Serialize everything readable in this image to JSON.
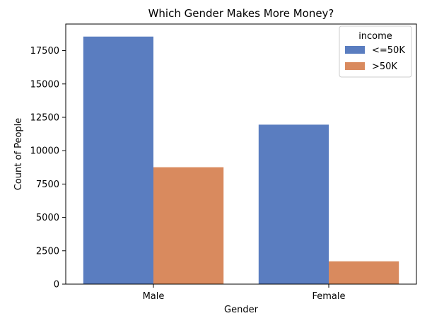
{
  "chart_data": {
    "type": "bar",
    "title": "Which Gender Makes More Money?",
    "xlabel": "Gender",
    "ylabel": "Count of People",
    "categories": [
      "Male",
      "Female"
    ],
    "series": [
      {
        "name": "<=50K",
        "values": [
          18550,
          11950
        ],
        "color": "#5a7dc0"
      },
      {
        "name": ">50K",
        "values": [
          8760,
          1710
        ],
        "color": "#d98a5e"
      }
    ],
    "ylim": [
      0,
      19490
    ],
    "yticks": [
      0,
      2500,
      5000,
      7500,
      10000,
      12500,
      15000,
      17500
    ],
    "ytick_labels": [
      "0",
      "2500",
      "5000",
      "7500",
      "10000",
      "12500",
      "15000",
      "17500"
    ],
    "legend": {
      "title": "income",
      "position": "top-right"
    },
    "grid": false
  }
}
